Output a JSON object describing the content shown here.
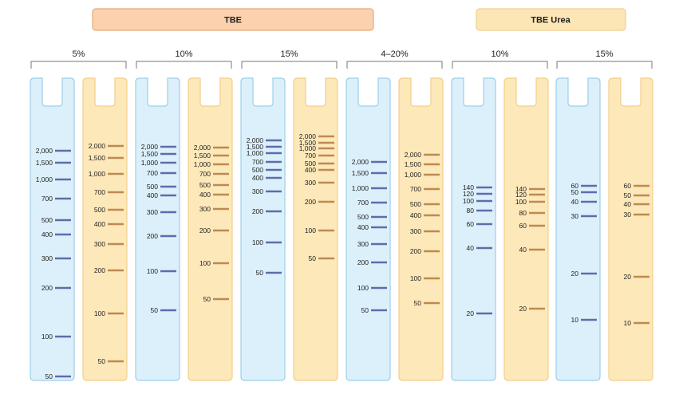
{
  "colors": {
    "tbe_header_fill": "#fbd2ad",
    "tbe_header_stroke": "#e7a97a",
    "urea_header_fill": "#fde6b6",
    "urea_header_stroke": "#f0cf8c",
    "blue_lane_fill": "#dcf0fb",
    "blue_lane_stroke": "#9ccfe9",
    "yellow_lane_fill": "#fde8b9",
    "yellow_lane_stroke": "#f2cf8a",
    "blue_band": "#5f6cab",
    "yellow_band": "#bd8a50",
    "bracket": "#777777"
  },
  "headers": {
    "tbe": "TBE",
    "tbe_urea": "TBE Urea"
  },
  "gel_groups": [
    {
      "percent": "5%",
      "lanes": [
        {
          "color": "blue",
          "bands": [
            "2,000",
            "1,500",
            "1,000",
            "700",
            "500",
            "400",
            "300",
            "200",
            "100",
            "50"
          ]
        },
        {
          "color": "yellow",
          "bands": [
            "2,000",
            "1,500",
            "1,000",
            "700",
            "500",
            "400",
            "300",
            "200",
            "100",
            "50"
          ]
        }
      ]
    },
    {
      "percent": "10%",
      "lanes": [
        {
          "color": "blue",
          "bands": [
            "2,000",
            "1,500",
            "1,000",
            "700",
            "500",
            "400",
            "300",
            "200",
            "100",
            "50"
          ]
        },
        {
          "color": "yellow",
          "bands": [
            "2,000",
            "1,500",
            "1,000",
            "700",
            "500",
            "400",
            "300",
            "200",
            "100",
            "50"
          ]
        }
      ]
    },
    {
      "percent": "15%",
      "lanes": [
        {
          "color": "blue",
          "bands": [
            "2,000",
            "1,500",
            "1,000",
            "700",
            "500",
            "400",
            "300",
            "200",
            "100",
            "50"
          ]
        },
        {
          "color": "yellow",
          "bands": [
            "2,000",
            "1,500",
            "1,000",
            "700",
            "500",
            "400",
            "300",
            "200",
            "100",
            "50"
          ]
        }
      ]
    },
    {
      "percent": "4–20%",
      "lanes": [
        {
          "color": "blue",
          "bands": [
            "2,000",
            "1,500",
            "1,000",
            "700",
            "500",
            "400",
            "300",
            "200",
            "100",
            "50"
          ]
        },
        {
          "color": "yellow",
          "bands": [
            "2,000",
            "1,500",
            "1,000",
            "700",
            "500",
            "400",
            "300",
            "200",
            "100",
            "50"
          ]
        }
      ]
    },
    {
      "percent": "10%",
      "lanes": [
        {
          "color": "blue",
          "bands": [
            "140",
            "120",
            "100",
            "80",
            "60",
            "40",
            "20"
          ]
        },
        {
          "color": "yellow",
          "bands": [
            "140",
            "120",
            "100",
            "80",
            "60",
            "40",
            "20"
          ]
        }
      ]
    },
    {
      "percent": "15%",
      "lanes": [
        {
          "color": "blue",
          "bands": [
            "60",
            "50",
            "40",
            "30",
            "20",
            "10"
          ]
        },
        {
          "color": "yellow",
          "bands": [
            "60",
            "50",
            "40",
            "30",
            "20",
            "10"
          ]
        }
      ]
    }
  ]
}
